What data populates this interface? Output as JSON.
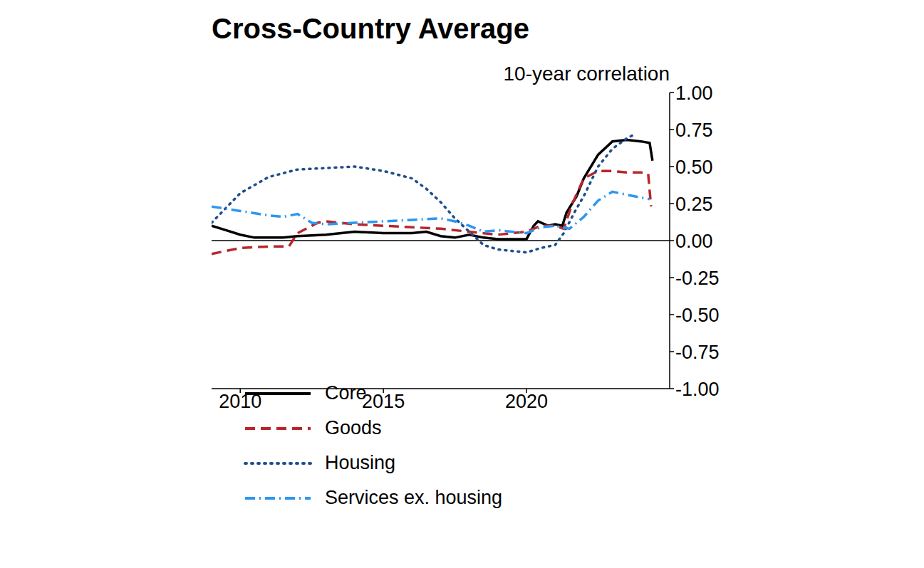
{
  "chart_data": {
    "type": "line",
    "title": "Cross-Country Average",
    "y_label": "10-year correlation",
    "xlim": [
      2009,
      2025
    ],
    "xticks": [
      2010,
      2015,
      2020
    ],
    "ylim": [
      -1,
      1
    ],
    "yticks": [
      {
        "value": -1,
        "label": "-1.00"
      },
      {
        "value": -0.75,
        "label": "-0.75"
      },
      {
        "value": -0.5,
        "label": "-0.50"
      },
      {
        "value": -0.25,
        "label": "-0.25"
      },
      {
        "value": 0,
        "label": "0.00"
      },
      {
        "value": 0.25,
        "label": "0.25"
      },
      {
        "value": 0.5,
        "label": "0.50"
      },
      {
        "value": 0.75,
        "label": "0.75"
      },
      {
        "value": 1,
        "label": "1.00"
      }
    ],
    "hline": 0,
    "grid": false,
    "legend": "lower left",
    "series": [
      {
        "name": "Core",
        "color": "#000000",
        "line_style": "solid",
        "x": [
          2009,
          2009.5,
          2010,
          2010.5,
          2011,
          2011.5,
          2012,
          2013,
          2014,
          2015,
          2016,
          2016.5,
          2017,
          2017.5,
          2018,
          2018.5,
          2019,
          2020,
          2020.25,
          2020.4,
          2020.75,
          2021,
          2021.25,
          2021.4,
          2021.75,
          2022,
          2022.5,
          2023,
          2023.5,
          2024,
          2024.3,
          2024.4
        ],
        "values": [
          0.1,
          0.07,
          0.04,
          0.02,
          0.02,
          0.02,
          0.03,
          0.04,
          0.06,
          0.05,
          0.05,
          0.06,
          0.03,
          0.02,
          0.04,
          0.02,
          0.01,
          0.01,
          0.1,
          0.13,
          0.1,
          0.11,
          0.1,
          0.19,
          0.3,
          0.42,
          0.58,
          0.67,
          0.68,
          0.67,
          0.66,
          0.54
        ]
      },
      {
        "name": "Goods",
        "color": "#b8262c",
        "line_style": "dashed",
        "x": [
          2009,
          2010,
          2011,
          2011.7,
          2012,
          2012.7,
          2013,
          2014,
          2015,
          2016,
          2017,
          2018,
          2019,
          2020,
          2020.5,
          2021,
          2021.3,
          2021.6,
          2022,
          2022.5,
          2023,
          2023.5,
          2024,
          2024.25,
          2024.35
        ],
        "values": [
          -0.09,
          -0.05,
          -0.04,
          -0.04,
          0.05,
          0.12,
          0.13,
          0.11,
          0.1,
          0.09,
          0.08,
          0.06,
          0.04,
          0.06,
          0.1,
          0.1,
          0.08,
          0.25,
          0.42,
          0.47,
          0.47,
          0.46,
          0.46,
          0.45,
          0.23
        ]
      },
      {
        "name": "Housing",
        "color": "#1f4e8c",
        "line_style": "dotted",
        "x": [
          2009,
          2010,
          2011,
          2012,
          2013,
          2014,
          2015,
          2016,
          2016.5,
          2017,
          2017.5,
          2018,
          2018.5,
          2019,
          2019.5,
          2020,
          2020.5,
          2021,
          2021.3,
          2021.7,
          2022,
          2022.5,
          2023,
          2023.5,
          2023.8
        ],
        "values": [
          0.12,
          0.32,
          0.43,
          0.48,
          0.49,
          0.5,
          0.47,
          0.42,
          0.35,
          0.26,
          0.15,
          0.06,
          -0.03,
          -0.06,
          -0.07,
          -0.08,
          -0.05,
          -0.03,
          0.05,
          0.2,
          0.3,
          0.5,
          0.62,
          0.69,
          0.72
        ]
      },
      {
        "name": "Services ex. housing",
        "color": "#2e96f0",
        "line_style": "dashdot",
        "x": [
          2009,
          2010,
          2011,
          2011.5,
          2012,
          2012.5,
          2013,
          2014,
          2015,
          2016,
          2017,
          2017.5,
          2018,
          2018.5,
          2019,
          2020,
          2020.5,
          2021,
          2021.5,
          2022,
          2022.5,
          2023,
          2023.5,
          2024,
          2024.3
        ],
        "values": [
          0.23,
          0.2,
          0.17,
          0.16,
          0.18,
          0.12,
          0.11,
          0.12,
          0.13,
          0.14,
          0.15,
          0.13,
          0.1,
          0.06,
          0.07,
          0.05,
          0.09,
          0.1,
          0.08,
          0.16,
          0.27,
          0.33,
          0.31,
          0.29,
          0.28
        ]
      }
    ]
  }
}
